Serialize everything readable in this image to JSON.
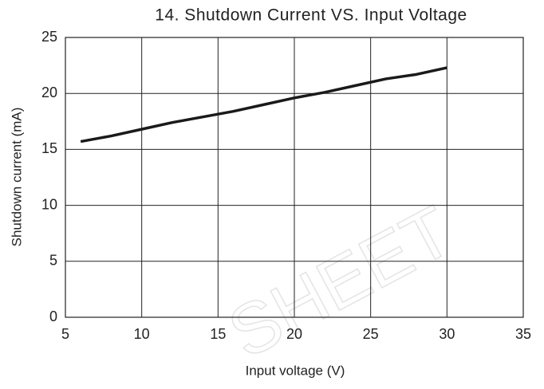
{
  "chart_data": {
    "type": "line",
    "title": "14. Shutdown Current VS. Input Voltage",
    "x_label": "Input voltage (V)",
    "y_label": "Shutdown current (mA)",
    "watermark": "SHEET",
    "x": [
      6,
      8,
      10,
      12,
      14,
      16,
      18,
      20,
      22,
      24,
      26,
      28,
      30
    ],
    "series": [
      {
        "name": "Shutdown current",
        "color": "#1a1a1a",
        "values": [
          15.7,
          16.2,
          16.8,
          17.4,
          17.9,
          18.4,
          19.0,
          19.6,
          20.1,
          20.7,
          21.3,
          21.7,
          22.3
        ]
      }
    ],
    "xlim": [
      5,
      35
    ],
    "xticks": [
      5,
      10,
      15,
      20,
      25,
      30,
      35
    ],
    "ylim": [
      0,
      25
    ],
    "yticks": [
      0,
      5,
      10,
      15,
      20,
      25
    ],
    "grid": true
  }
}
